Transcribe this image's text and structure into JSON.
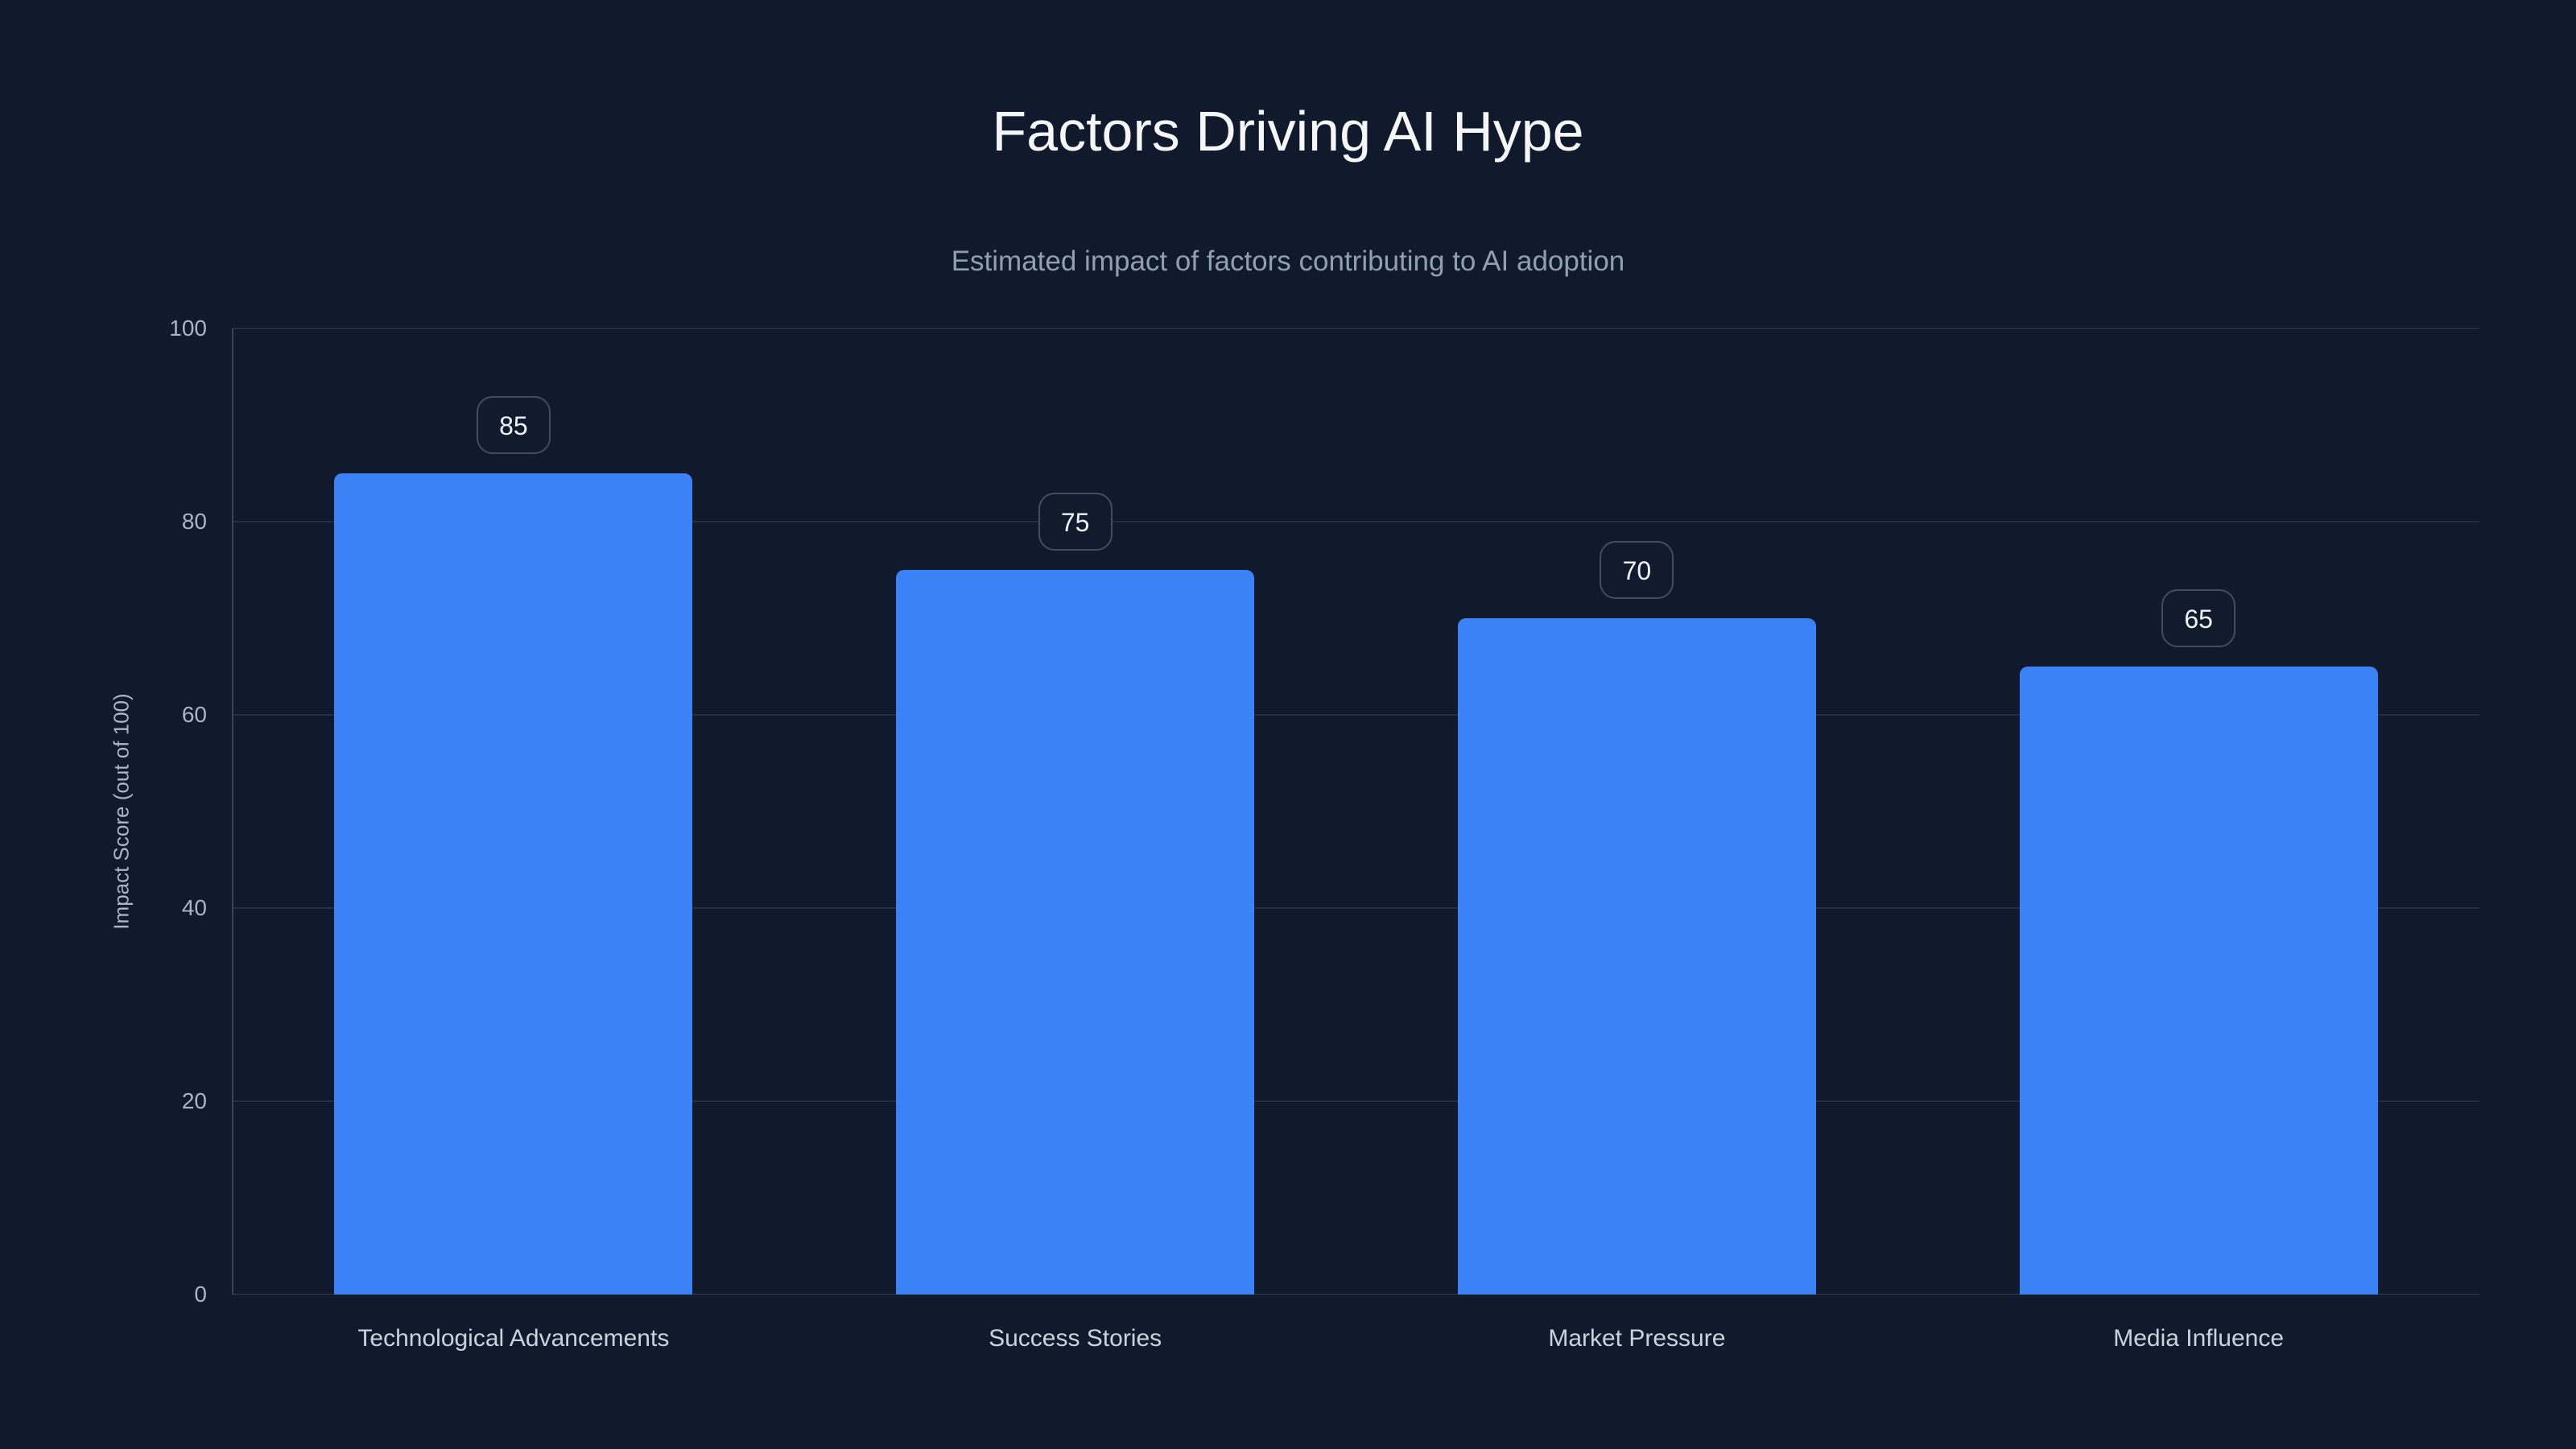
{
  "title": "Factors Driving AI Hype",
  "subtitle": "Estimated impact of factors contributing to AI adoption",
  "chart_data": {
    "type": "bar",
    "title": "Factors Driving AI Hype",
    "subtitle": "Estimated impact of factors contributing to AI adoption",
    "categories": [
      "Technological Advancements",
      "Success Stories",
      "Market Pressure",
      "Media Influence"
    ],
    "values": [
      85,
      75,
      70,
      65
    ],
    "value_labels": [
      "85",
      "75",
      "70",
      "65"
    ],
    "xlabel": "",
    "ylabel": "Impact Score (out of 100)",
    "ylim": [
      0,
      100
    ],
    "yticks": [
      "0",
      "20",
      "40",
      "60",
      "80",
      "100"
    ],
    "grid": true,
    "legend": "none",
    "colors": {
      "bar": "#3b82f6",
      "background": "#101a2c",
      "gridline": "#242f45",
      "axis_line": "#36435a",
      "tick_text": "#a9b6c6",
      "category_text": "#c9d3de",
      "title_text": "#f4f6f8",
      "subtitle_text": "#8fa0b3",
      "badge_border": "#404d63",
      "badge_text": "#eef2f7"
    }
  }
}
